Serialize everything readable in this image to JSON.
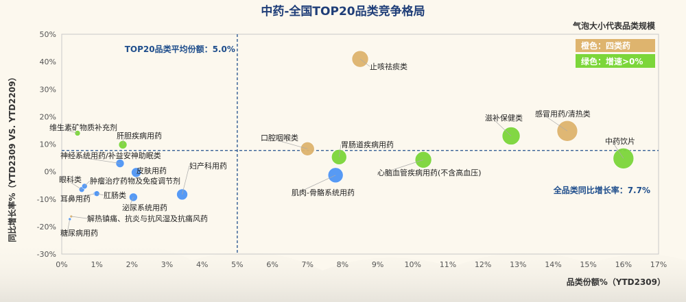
{
  "chart_data": {
    "type": "scatter",
    "title": "中药-全国TOP20品类竞争格局",
    "subtitle": "气泡大小代表品类规模",
    "xlabel": "品类份额%（YTD2309）",
    "ylabel": "同比增长率%（YTD2309 VS. YTD2209）",
    "xlim": [
      0,
      17
    ],
    "ylim": [
      -30,
      50
    ],
    "x_ticks": [
      "0%",
      "1%",
      "2%",
      "3%",
      "4%",
      "5%",
      "6%",
      "7%",
      "8%",
      "9%",
      "10%",
      "11%",
      "12%",
      "13%",
      "14%",
      "15%",
      "16%",
      "17%"
    ],
    "y_ticks": [
      "50%",
      "40%",
      "30%",
      "20%",
      "10%",
      "0%",
      "-10%",
      "-20%",
      "-30%"
    ],
    "grid": false,
    "legend_position": "top-right",
    "legend": [
      {
        "label": "橙色：四类药",
        "color": "#deb46e"
      },
      {
        "label": "绿色：增速>0%",
        "color": "#7cd63a"
      }
    ],
    "colors": {
      "orange": "#deb46e",
      "green": "#7cd63a",
      "blue": "#4f96f5",
      "reference": "#1f4e8c"
    },
    "reference_lines": [
      {
        "axis": "x",
        "value": 5.0,
        "label": "TOP20品类平均份额：5.0%"
      },
      {
        "axis": "y",
        "value": 7.7,
        "label": "全品类同比增长率：7.7%"
      }
    ],
    "points": [
      {
        "name": "止咳祛痰类",
        "x": 8.5,
        "y": 41.0,
        "size": 12,
        "color": "orange"
      },
      {
        "name": "口腔咽喉类",
        "x": 7.0,
        "y": 8.3,
        "size": 10,
        "color": "orange"
      },
      {
        "name": "胃肠道疾病用药",
        "x": 7.9,
        "y": 5.3,
        "size": 11,
        "color": "green"
      },
      {
        "name": "肌肉-骨骼系统用药",
        "x": 7.8,
        "y": -1.3,
        "size": 11,
        "color": "blue"
      },
      {
        "name": "心脑血管疾病用药(不含高血压)",
        "x": 10.3,
        "y": 4.3,
        "size": 12,
        "color": "green"
      },
      {
        "name": "滋补保健类",
        "x": 12.8,
        "y": 13.0,
        "size": 13,
        "color": "green"
      },
      {
        "name": "感冒用药/清热类",
        "x": 14.4,
        "y": 14.8,
        "size": 15,
        "color": "orange"
      },
      {
        "name": "中药饮片",
        "x": 16.0,
        "y": 4.8,
        "size": 15,
        "color": "green"
      },
      {
        "name": "维生素矿物质补充剂",
        "x": 0.45,
        "y": 14.0,
        "size": 4,
        "color": "green"
      },
      {
        "name": "肝胆疾病用药",
        "x": 1.74,
        "y": 9.8,
        "size": 6,
        "color": "green"
      },
      {
        "name": "神经系统用药/补益安神助眠类",
        "x": 1.66,
        "y": 3.0,
        "size": 6,
        "color": "blue"
      },
      {
        "name": "皮肤用药",
        "x": 2.12,
        "y": -0.3,
        "size": 7,
        "color": "blue"
      },
      {
        "name": "妇产科用药",
        "x": 3.43,
        "y": -8.3,
        "size": 8,
        "color": "blue"
      },
      {
        "name": "眼科类",
        "x": 0.57,
        "y": -6.5,
        "size": 4,
        "color": "blue"
      },
      {
        "name": "肿瘤治疗药物及免疫调节剂",
        "x": 0.65,
        "y": -5.3,
        "size": 4,
        "color": "blue"
      },
      {
        "name": "耳鼻用药",
        "x": 0.98,
        "y": -8.0,
        "size": 4,
        "color": "blue"
      },
      {
        "name": "肛肠类",
        "x": 1.0,
        "y": -8.0,
        "size": 4,
        "color": "blue"
      },
      {
        "name": "泌尿系统用药",
        "x": 2.04,
        "y": -9.3,
        "size": 6,
        "color": "blue"
      },
      {
        "name": "解热镇痛、抗炎与抗风湿及抗痛风药",
        "x": 0.27,
        "y": -16.3,
        "size": 2,
        "color": "orange"
      },
      {
        "name": "糖尿病用药",
        "x": 0.23,
        "y": -17.3,
        "size": 2,
        "color": "blue"
      }
    ]
  }
}
